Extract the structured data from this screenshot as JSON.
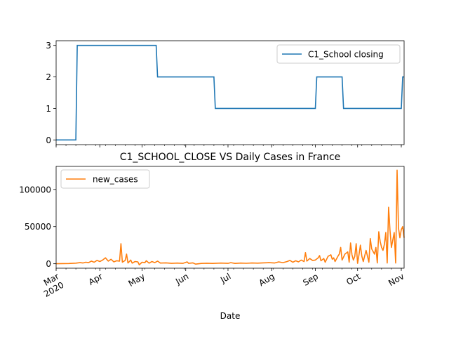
{
  "chart_data": [
    {
      "type": "line",
      "title": "",
      "xlabel": "",
      "ylabel": "",
      "ylim": [
        -0.15,
        3.15
      ],
      "yticks": [
        0,
        1,
        2,
        3
      ],
      "ytick_labels": [
        "0",
        "1",
        "2",
        "3"
      ],
      "xlim": [
        "2020-03-01",
        "2020-11-03"
      ],
      "grid": false,
      "legend_position": "upper-right",
      "series": [
        {
          "name": "C1_School closing",
          "color": "#1f77b4",
          "step": true,
          "points": [
            [
              "2020-03-01",
              0
            ],
            [
              "2020-03-15",
              0
            ],
            [
              "2020-03-16",
              3
            ],
            [
              "2020-05-11",
              3
            ],
            [
              "2020-05-12",
              2
            ],
            [
              "2020-06-21",
              2
            ],
            [
              "2020-06-22",
              1
            ],
            [
              "2020-09-01",
              1
            ],
            [
              "2020-09-02",
              2
            ],
            [
              "2020-09-20",
              2
            ],
            [
              "2020-09-21",
              1
            ],
            [
              "2020-11-01",
              1
            ],
            [
              "2020-11-02",
              2
            ],
            [
              "2020-11-03",
              2
            ]
          ]
        }
      ]
    },
    {
      "type": "line",
      "title": "C1_SCHOOL_CLOSE VS Daily Cases in France",
      "xlabel": "Date",
      "ylabel": "",
      "ylim": [
        -6000,
        131000
      ],
      "yticks": [
        0,
        50000,
        100000
      ],
      "ytick_labels": [
        "0",
        "50000",
        "100000"
      ],
      "xlim": [
        "2020-03-01",
        "2020-11-03"
      ],
      "xticks": [
        "2020-03-01",
        "2020-04-01",
        "2020-05-01",
        "2020-06-01",
        "2020-07-01",
        "2020-08-01",
        "2020-09-01",
        "2020-10-01",
        "2020-11-01"
      ],
      "xtick_labels": [
        "Mar\n2020",
        "Apr",
        "May",
        "Jun",
        "Jul",
        "Aug",
        "Sep",
        "Oct",
        "Nov"
      ],
      "grid": false,
      "legend_position": "upper-left",
      "series": [
        {
          "name": "new_cases",
          "color": "#ff7f0e",
          "points": [
            [
              "2020-03-01",
              0
            ],
            [
              "2020-03-10",
              300
            ],
            [
              "2020-03-15",
              800
            ],
            [
              "2020-03-18",
              1500
            ],
            [
              "2020-03-20",
              1000
            ],
            [
              "2020-03-22",
              2000
            ],
            [
              "2020-03-24",
              1500
            ],
            [
              "2020-03-26",
              3500
            ],
            [
              "2020-03-28",
              2000
            ],
            [
              "2020-03-30",
              4500
            ],
            [
              "2020-04-01",
              3000
            ],
            [
              "2020-04-03",
              5000
            ],
            [
              "2020-04-05",
              8000
            ],
            [
              "2020-04-07",
              3500
            ],
            [
              "2020-04-09",
              6000
            ],
            [
              "2020-04-11",
              2500
            ],
            [
              "2020-04-13",
              4000
            ],
            [
              "2020-04-15",
              3500
            ],
            [
              "2020-04-16",
              27000
            ],
            [
              "2020-04-17",
              2000
            ],
            [
              "2020-04-19",
              4500
            ],
            [
              "2020-04-20",
              13000
            ],
            [
              "2020-04-21",
              1000
            ],
            [
              "2020-04-23",
              5000
            ],
            [
              "2020-04-24",
              800
            ],
            [
              "2020-04-26",
              3000
            ],
            [
              "2020-04-28",
              2500
            ],
            [
              "2020-04-29",
              -1500
            ],
            [
              "2020-05-01",
              2000
            ],
            [
              "2020-05-03",
              1500
            ],
            [
              "2020-05-04",
              4000
            ],
            [
              "2020-05-06",
              800
            ],
            [
              "2020-05-08",
              3000
            ],
            [
              "2020-05-10",
              1500
            ],
            [
              "2020-05-12",
              3500
            ],
            [
              "2020-05-14",
              900
            ],
            [
              "2020-05-18",
              1200
            ],
            [
              "2020-05-22",
              500
            ],
            [
              "2020-05-26",
              900
            ],
            [
              "2020-05-30",
              500
            ],
            [
              "2020-06-02",
              2500
            ],
            [
              "2020-06-03",
              500
            ],
            [
              "2020-06-06",
              1200
            ],
            [
              "2020-06-08",
              -500
            ],
            [
              "2020-06-12",
              400
            ],
            [
              "2020-06-16",
              700
            ],
            [
              "2020-06-20",
              400
            ],
            [
              "2020-06-26",
              900
            ],
            [
              "2020-07-01",
              500
            ],
            [
              "2020-07-03",
              1500
            ],
            [
              "2020-07-06",
              400
            ],
            [
              "2020-07-10",
              900
            ],
            [
              "2020-07-14",
              600
            ],
            [
              "2020-07-18",
              1000
            ],
            [
              "2020-07-22",
              800
            ],
            [
              "2020-07-26",
              1200
            ],
            [
              "2020-07-30",
              1500
            ],
            [
              "2020-08-03",
              1000
            ],
            [
              "2020-08-06",
              2500
            ],
            [
              "2020-08-09",
              1500
            ],
            [
              "2020-08-12",
              3000
            ],
            [
              "2020-08-14",
              4500
            ],
            [
              "2020-08-16",
              2000
            ],
            [
              "2020-08-18",
              4000
            ],
            [
              "2020-08-20",
              2500
            ],
            [
              "2020-08-22",
              5000
            ],
            [
              "2020-08-24",
              3000
            ],
            [
              "2020-08-25",
              15000
            ],
            [
              "2020-08-26",
              3500
            ],
            [
              "2020-08-28",
              7000
            ],
            [
              "2020-08-30",
              4500
            ],
            [
              "2020-09-01",
              5000
            ],
            [
              "2020-09-03",
              8000
            ],
            [
              "2020-09-04",
              11000
            ],
            [
              "2020-09-05",
              4000
            ],
            [
              "2020-09-07",
              7000
            ],
            [
              "2020-09-08",
              2000
            ],
            [
              "2020-09-10",
              10000
            ],
            [
              "2020-09-12",
              12000
            ],
            [
              "2020-09-13",
              6000
            ],
            [
              "2020-09-14",
              8000
            ],
            [
              "2020-09-15",
              3000
            ],
            [
              "2020-09-17",
              10000
            ],
            [
              "2020-09-18",
              13000
            ],
            [
              "2020-09-19",
              22000
            ],
            [
              "2020-09-20",
              5000
            ],
            [
              "2020-09-22",
              13000
            ],
            [
              "2020-09-24",
              16000
            ],
            [
              "2020-09-25",
              2000
            ],
            [
              "2020-09-26",
              28000
            ],
            [
              "2020-09-27",
              12000
            ],
            [
              "2020-09-28",
              5000
            ],
            [
              "2020-09-29",
              10000
            ],
            [
              "2020-09-30",
              27000
            ],
            [
              "2020-10-01",
              500
            ],
            [
              "2020-10-02",
              12000
            ],
            [
              "2020-10-03",
              25000
            ],
            [
              "2020-10-04",
              10000
            ],
            [
              "2020-10-05",
              3000
            ],
            [
              "2020-10-07",
              18000
            ],
            [
              "2020-10-09",
              2000
            ],
            [
              "2020-10-10",
              34000
            ],
            [
              "2020-10-11",
              20000
            ],
            [
              "2020-10-13",
              13000
            ],
            [
              "2020-10-14",
              22000
            ],
            [
              "2020-10-15",
              1000
            ],
            [
              "2020-10-16",
              43000
            ],
            [
              "2020-10-17",
              30000
            ],
            [
              "2020-10-18",
              22000
            ],
            [
              "2020-10-19",
              18000
            ],
            [
              "2020-10-20",
              26000
            ],
            [
              "2020-10-21",
              42000
            ],
            [
              "2020-10-22",
              1000
            ],
            [
              "2020-10-23",
              76000
            ],
            [
              "2020-10-24",
              45000
            ],
            [
              "2020-10-25",
              22000
            ],
            [
              "2020-10-26",
              32000
            ],
            [
              "2020-10-27",
              42000
            ],
            [
              "2020-10-28",
              1000
            ],
            [
              "2020-10-29",
              126000
            ],
            [
              "2020-10-30",
              48000
            ],
            [
              "2020-10-31",
              35000
            ],
            [
              "2020-11-01",
              46000
            ],
            [
              "2020-11-02",
              50000
            ],
            [
              "2020-11-03",
              35000
            ]
          ]
        }
      ]
    }
  ]
}
